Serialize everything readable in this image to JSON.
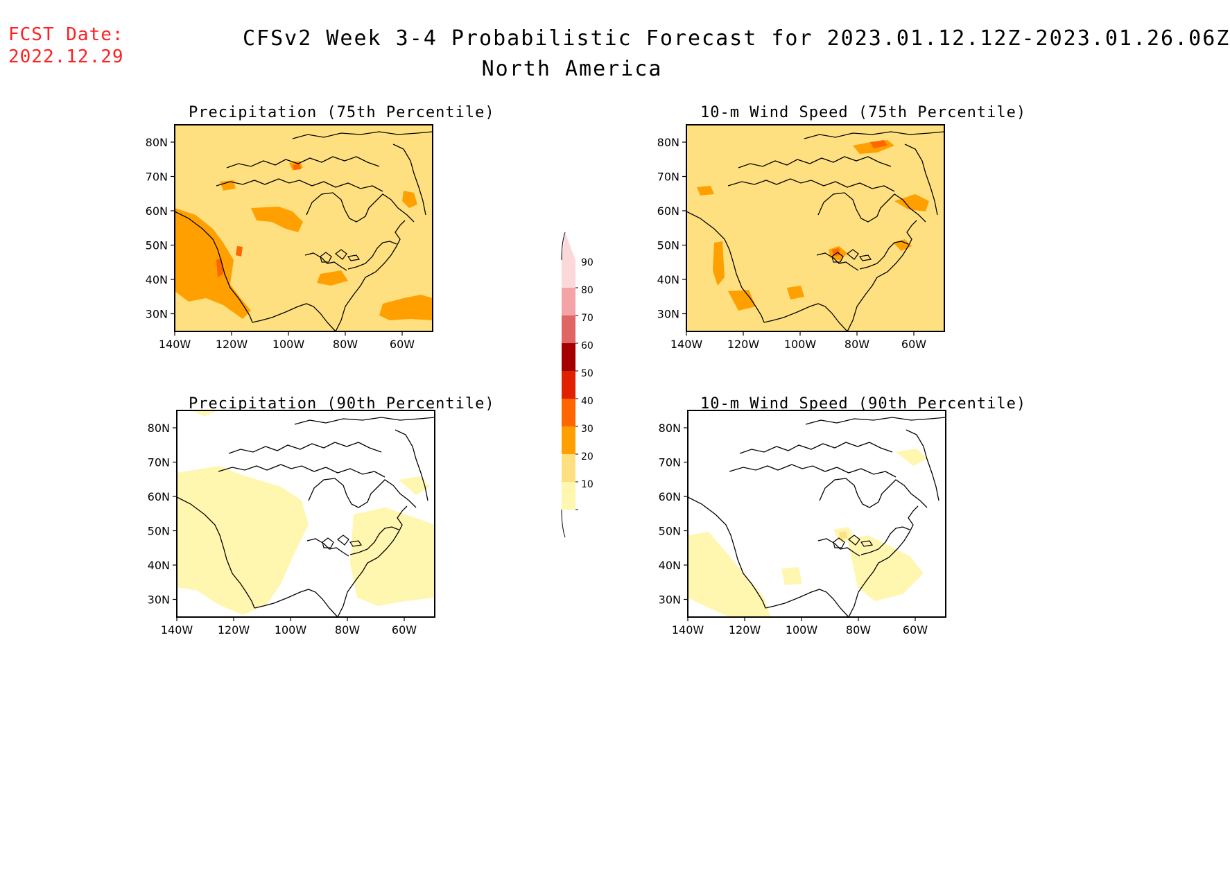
{
  "header": {
    "fcst_date_label": "FCST Date:",
    "fcst_date_value": "2022.12.29",
    "title_line1": "CFSv2 Week 3-4 Probabilistic Forecast for 2023.01.12.12Z-2023.01.26.06Z",
    "title_line2": "North America"
  },
  "panels": [
    {
      "title": "Precipitation (75th Percentile)",
      "category": "moderate"
    },
    {
      "title": "10-m Wind Speed (75th Percentile)",
      "category": "moderate"
    },
    {
      "title": "Precipitation (90th Percentile)",
      "category": "light"
    },
    {
      "title": "10-m Wind Speed (90th Percentile)",
      "category": "light"
    }
  ],
  "axes": {
    "lat_labels": [
      "80N",
      "70N",
      "60N",
      "50N",
      "40N",
      "30N"
    ],
    "lon_labels": [
      "140W",
      "120W",
      "100W",
      "80W",
      "60W"
    ]
  },
  "colorbar": {
    "levels": [
      "90",
      "80",
      "70",
      "60",
      "50",
      "40",
      "30",
      "20",
      "10"
    ],
    "colors": [
      "#fbd9da",
      "#f4a3a6",
      "#e06666",
      "#a50000",
      "#e02000",
      "#ff6600",
      "#ffa000",
      "#ffe080",
      "#fff6b0"
    ]
  },
  "colors": {
    "fcst_date": "#ff2020",
    "light_yellow": "#fff6b0",
    "yellow": "#ffe080",
    "orange": "#ffa000",
    "dark_orange": "#ff6600",
    "red": "#e02000"
  }
}
